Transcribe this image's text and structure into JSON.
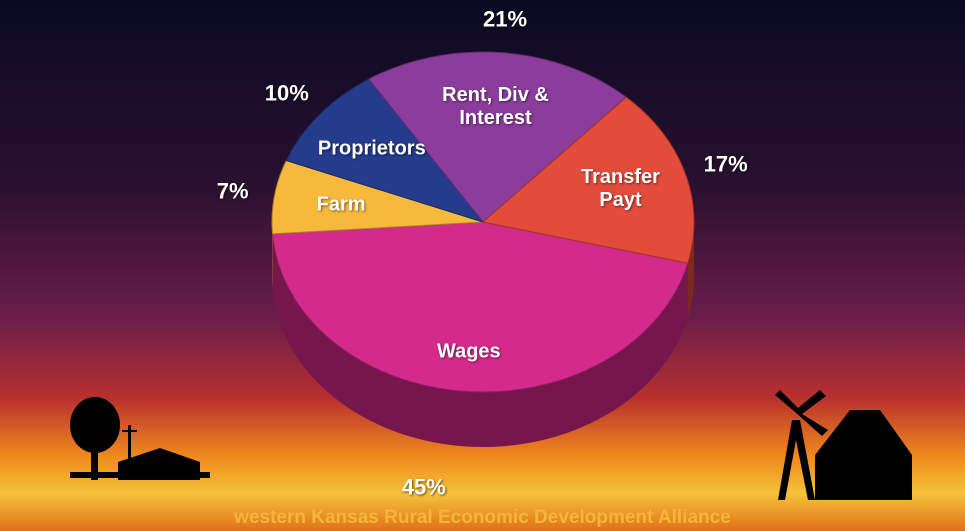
{
  "chart_data": {
    "type": "pie",
    "categories": [
      "Wages",
      "Farm",
      "Proprietors",
      "Rent, Div & Interest",
      "Transfer Payt"
    ],
    "values": [
      45,
      7,
      10,
      21,
      17
    ],
    "value_labels": [
      "45%",
      "7%",
      "10%",
      "21%",
      "17%"
    ],
    "colors": [
      "#d42a8c",
      "#f6b93c",
      "#253b8c",
      "#8b3c9c",
      "#e34b3b"
    ],
    "caption": "western Kansas Rural Economic Development Alliance"
  }
}
